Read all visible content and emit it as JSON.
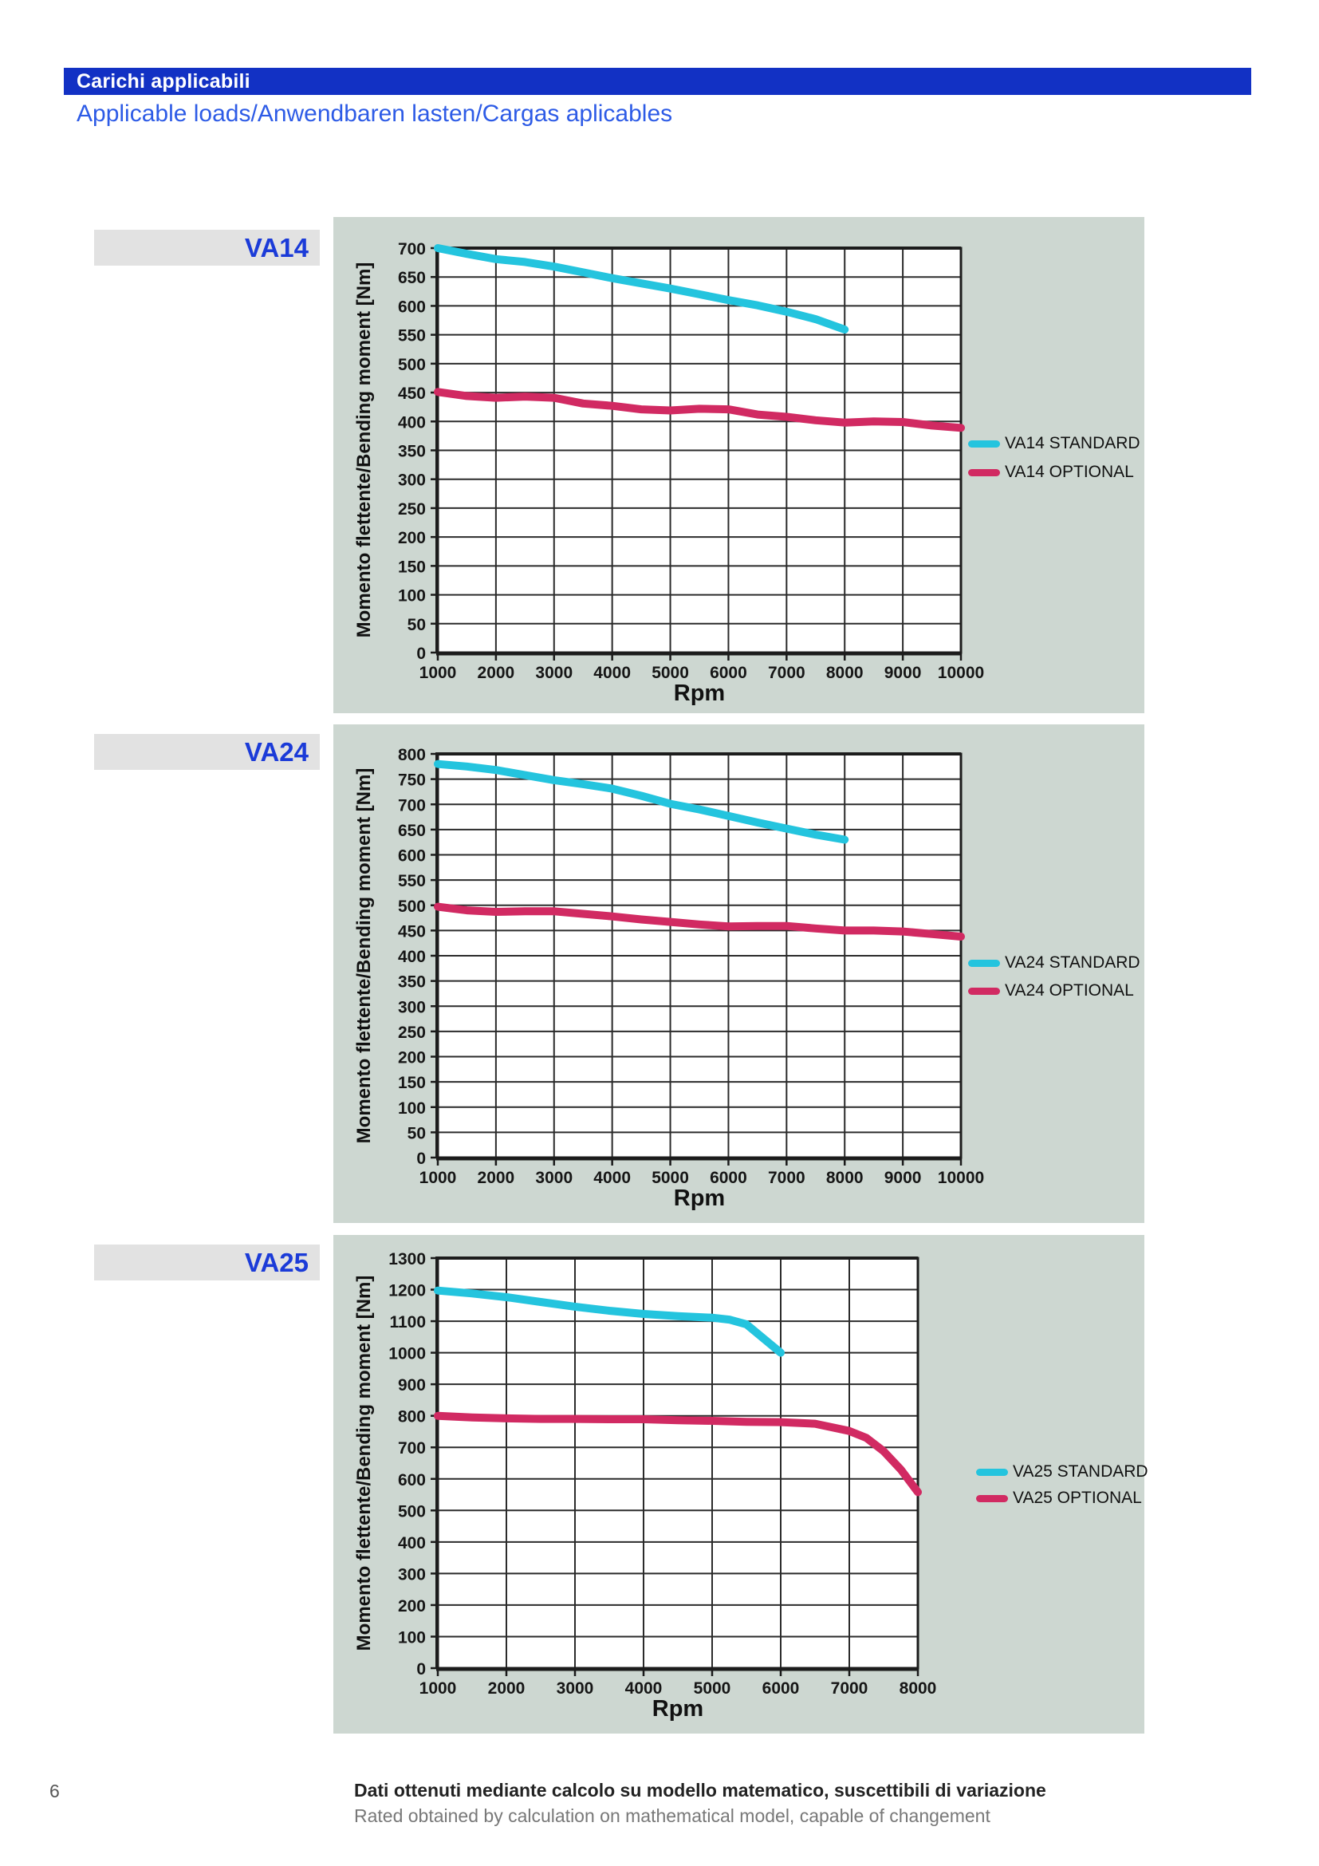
{
  "page_number": "6",
  "header": {
    "title": "Carichi applicabili",
    "subtitle": "Applicable loads/Anwendbaren lasten/Cargas aplicables",
    "bar_color": "#1231c4",
    "subtitle_color": "#2d5be6"
  },
  "colors": {
    "standard": "#24c4de",
    "optional": "#d12a62",
    "panel_bg": "#cdd7d1",
    "chip_bg": "#e2e2e2",
    "chip_text": "#1b3bd8",
    "grid": "#2b2b2b"
  },
  "footer": {
    "line1": "Dati ottenuti mediante calcolo su modello matematico, suscettibili di variazione",
    "line2": "Rated obtained by calculation on mathematical model, capable of changement"
  },
  "chart_data": [
    {
      "type": "line",
      "label": "VA14",
      "title": "VA14",
      "xlabel": "Rpm",
      "ylabel": "Momento flettente/Bending moment [Nm]",
      "ylim": [
        0,
        700
      ],
      "yticks": [
        0,
        50,
        100,
        150,
        200,
        250,
        300,
        350,
        400,
        450,
        500,
        550,
        600,
        650,
        700
      ],
      "xticks": [
        1000,
        2000,
        3000,
        4000,
        5000,
        6000,
        7000,
        8000,
        9000,
        10000
      ],
      "grid": true,
      "legend_position": "right",
      "series": [
        {
          "name": "VA14 STANDARD",
          "color_key": "standard",
          "points": [
            [
              1000,
              700
            ],
            [
              1500,
              690
            ],
            [
              2000,
              681
            ],
            [
              2500,
              676
            ],
            [
              3000,
              668
            ],
            [
              3500,
              658
            ],
            [
              4000,
              648
            ],
            [
              4500,
              639
            ],
            [
              5000,
              630
            ],
            [
              5500,
              620
            ],
            [
              6000,
              610
            ],
            [
              6500,
              601
            ],
            [
              7000,
              590
            ],
            [
              7500,
              577
            ],
            [
              8000,
              559
            ]
          ]
        },
        {
          "name": "VA14 OPTIONAL",
          "color_key": "optional",
          "points": [
            [
              1000,
              451
            ],
            [
              1500,
              444
            ],
            [
              2000,
              441
            ],
            [
              2500,
              443
            ],
            [
              3000,
              441
            ],
            [
              3500,
              431
            ],
            [
              4000,
              427
            ],
            [
              4500,
              421
            ],
            [
              5000,
              419
            ],
            [
              5500,
              422
            ],
            [
              6000,
              421
            ],
            [
              6500,
              412
            ],
            [
              7000,
              408
            ],
            [
              7500,
              402
            ],
            [
              8000,
              398
            ],
            [
              8500,
              400
            ],
            [
              9000,
              399
            ],
            [
              9500,
              393
            ],
            [
              10000,
              389
            ]
          ]
        }
      ]
    },
    {
      "type": "line",
      "label": "VA24",
      "title": "VA24",
      "xlabel": "Rpm",
      "ylabel": "Momento flettente/Bending moment [Nm]",
      "ylim": [
        0,
        800
      ],
      "yticks": [
        0,
        50,
        100,
        150,
        200,
        250,
        300,
        350,
        400,
        450,
        500,
        550,
        600,
        650,
        700,
        750,
        800
      ],
      "xticks": [
        1000,
        2000,
        3000,
        4000,
        5000,
        6000,
        7000,
        8000,
        9000,
        10000
      ],
      "grid": true,
      "legend_position": "right",
      "series": [
        {
          "name": "VA24 STANDARD",
          "color_key": "standard",
          "points": [
            [
              1000,
              780
            ],
            [
              1500,
              775
            ],
            [
              2000,
              768
            ],
            [
              2500,
              758
            ],
            [
              3000,
              748
            ],
            [
              3500,
              740
            ],
            [
              4000,
              731
            ],
            [
              4500,
              717
            ],
            [
              5000,
              701
            ],
            [
              5500,
              690
            ],
            [
              6000,
              677
            ],
            [
              6500,
              664
            ],
            [
              7000,
              652
            ],
            [
              7500,
              640
            ],
            [
              8000,
              630
            ]
          ]
        },
        {
          "name": "VA24 OPTIONAL",
          "color_key": "optional",
          "points": [
            [
              1000,
              497
            ],
            [
              1500,
              490
            ],
            [
              2000,
              487
            ],
            [
              2500,
              488
            ],
            [
              3000,
              488
            ],
            [
              3500,
              483
            ],
            [
              4000,
              478
            ],
            [
              4500,
              472
            ],
            [
              5000,
              467
            ],
            [
              5500,
              462
            ],
            [
              6000,
              458
            ],
            [
              6500,
              459
            ],
            [
              7000,
              459
            ],
            [
              7500,
              454
            ],
            [
              8000,
              450
            ],
            [
              8500,
              450
            ],
            [
              9000,
              448
            ],
            [
              9500,
              443
            ],
            [
              10000,
              438
            ]
          ]
        }
      ]
    },
    {
      "type": "line",
      "label": "VA25",
      "title": "VA25",
      "xlabel": "Rpm",
      "ylabel": "Momento flettente/Bending moment [Nm]",
      "ylim": [
        0,
        1300
      ],
      "yticks": [
        0,
        100,
        200,
        300,
        400,
        500,
        600,
        700,
        800,
        900,
        1000,
        1100,
        1200,
        1300
      ],
      "xticks": [
        1000,
        2000,
        3000,
        4000,
        5000,
        6000,
        7000,
        8000
      ],
      "grid": true,
      "legend_position": "right",
      "series": [
        {
          "name": "VA25 STANDARD",
          "color_key": "standard",
          "points": [
            [
              1000,
              1197
            ],
            [
              1500,
              1188
            ],
            [
              2000,
              1176
            ],
            [
              2500,
              1161
            ],
            [
              3000,
              1146
            ],
            [
              3500,
              1133
            ],
            [
              4000,
              1123
            ],
            [
              4500,
              1116
            ],
            [
              5000,
              1111
            ],
            [
              5250,
              1105
            ],
            [
              5500,
              1090
            ],
            [
              6000,
              1000
            ]
          ]
        },
        {
          "name": "VA25 OPTIONAL",
          "color_key": "optional",
          "points": [
            [
              1000,
              800
            ],
            [
              1500,
              795
            ],
            [
              2000,
              792
            ],
            [
              2500,
              790
            ],
            [
              3000,
              790
            ],
            [
              3500,
              789
            ],
            [
              4000,
              789
            ],
            [
              4500,
              786
            ],
            [
              5000,
              784
            ],
            [
              5500,
              781
            ],
            [
              6000,
              780
            ],
            [
              6500,
              775
            ],
            [
              7000,
              752
            ],
            [
              7250,
              730
            ],
            [
              7500,
              688
            ],
            [
              7750,
              630
            ],
            [
              8000,
              558
            ]
          ]
        }
      ]
    }
  ]
}
